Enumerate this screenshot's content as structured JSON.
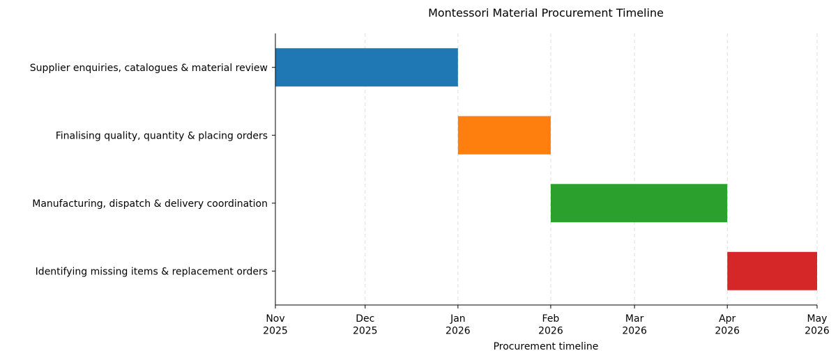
{
  "chart_data": {
    "type": "gantt",
    "title": "Montessori Material Procurement Timeline",
    "xlabel": "Procurement timeline",
    "categories": [
      "Supplier enquiries, catalogues & material review",
      "Finalising quality, quantity & placing orders",
      "Manufacturing, dispatch & delivery coordination",
      "Identifying missing items & replacement orders"
    ],
    "start": [
      "2025-11",
      "2026-01",
      "2026-02",
      "2026-04"
    ],
    "end": [
      "2026-01",
      "2026-02",
      "2026-04",
      "2026-05"
    ],
    "colors": [
      "#1f77b4",
      "#ff7f0e",
      "#2ca02c",
      "#d62728"
    ],
    "xlim": [
      "2025-11",
      "2026-05"
    ],
    "xticks": [
      {
        "value": "2025-11",
        "label": "Nov\n2025"
      },
      {
        "value": "2025-12",
        "label": "Dec\n2025"
      },
      {
        "value": "2026-01",
        "label": "Jan\n2026"
      },
      {
        "value": "2026-02",
        "label": "Feb\n2026"
      },
      {
        "value": "2026-03",
        "label": "Mar\n2026"
      },
      {
        "value": "2026-04",
        "label": "Apr\n2026"
      },
      {
        "value": "2026-05",
        "label": "May\n2026"
      }
    ],
    "grid": true
  }
}
